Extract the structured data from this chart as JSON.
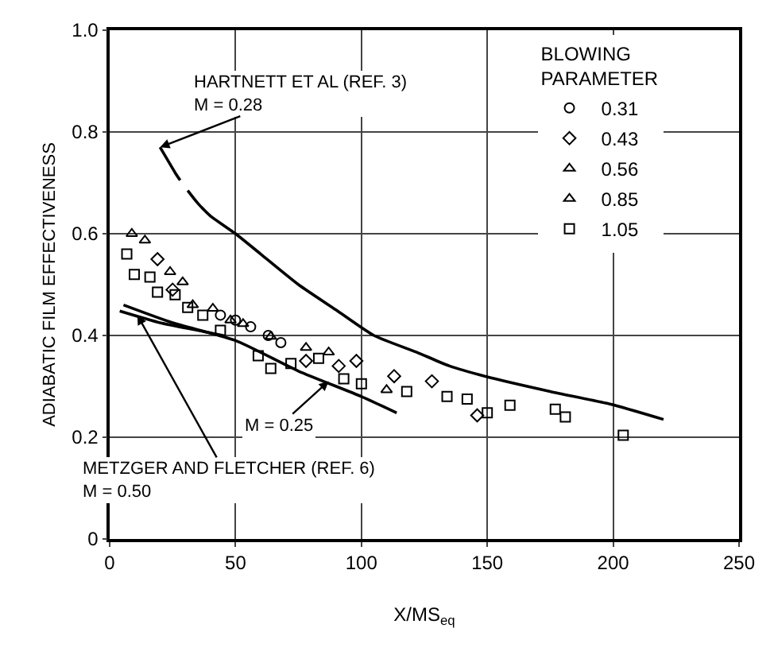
{
  "chart_data": {
    "type": "scatter",
    "xlabel": "X/MS$_{eq}$",
    "ylabel": "ADIABATIC FILM EFFECTIVENESS",
    "legend_title": "BLOWING\nPARAMETER",
    "xlim": [
      0,
      250
    ],
    "xticks": [
      0,
      50,
      100,
      150,
      200,
      250
    ],
    "ylim": [
      0,
      1.0
    ],
    "yticks": [
      0,
      0.2,
      0.4,
      0.6,
      0.8,
      {
        "value": 1.0,
        "label": "1.0"
      }
    ],
    "grid": true,
    "legend": "top right",
    "series": [
      {
        "type": "line",
        "color": "#000000",
        "line_style": "solid",
        "x": [
          20,
          23,
          26,
          28,
          29,
          31,
          35,
          40,
          50,
          60,
          75,
          90,
          105,
          122,
          135,
          149,
          175,
          199,
          220
        ],
        "values": [
          0.77,
          0.745,
          0.72,
          0.705,
          null,
          0.685,
          0.66,
          0.635,
          0.6,
          0.56,
          0.5,
          0.45,
          0.4,
          0.367,
          0.34,
          0.32,
          0.29,
          0.265,
          0.235
        ]
      },
      {
        "type": "line",
        "color": "#000000",
        "line_style": "solid",
        "x": [
          5.5,
          25,
          50,
          75,
          100,
          114
        ],
        "values": [
          0.46,
          0.425,
          0.39,
          0.33,
          0.28,
          0.248
        ]
      },
      {
        "type": "line",
        "color": "#000000",
        "line_style": "solid",
        "x": [
          4,
          20,
          35,
          45
        ],
        "values": [
          0.448,
          0.425,
          0.41,
          0.4
        ]
      },
      {
        "name": "0.31",
        "color": "#000000",
        "marker": "circle",
        "x": [
          44,
          50,
          56,
          63,
          68
        ],
        "values": [
          0.44,
          0.43,
          0.417,
          0.4,
          0.386
        ]
      },
      {
        "name": "0.43",
        "color": "#000000",
        "marker": "diamond",
        "x": [
          19,
          25,
          78,
          91,
          98,
          113,
          128,
          146
        ],
        "values": [
          0.55,
          0.49,
          0.35,
          0.34,
          0.35,
          0.32,
          0.31,
          0.243
        ]
      },
      {
        "name": "0.56",
        "color": "#000000",
        "marker": "triangle",
        "x": [
          8.8,
          14,
          24,
          29,
          78,
          87,
          110
        ],
        "values": [
          0.6,
          0.587,
          0.525,
          0.505,
          0.376,
          0.367,
          0.293
        ]
      },
      {
        "name": "0.85",
        "color": "#000000",
        "marker": "triangle",
        "x": [
          33,
          41,
          48,
          53,
          64
        ],
        "values": [
          0.46,
          0.453,
          0.43,
          0.423,
          0.398
        ]
      },
      {
        "name": "1.05",
        "color": "#000000",
        "marker": "square",
        "x": [
          6.8,
          9.8,
          16,
          19,
          26,
          31,
          37,
          44,
          59,
          64,
          72,
          83,
          93,
          100,
          118,
          134,
          142,
          150,
          159,
          177,
          181,
          204
        ],
        "values": [
          0.56,
          0.52,
          0.515,
          0.485,
          0.48,
          0.455,
          0.44,
          0.41,
          0.36,
          0.335,
          0.345,
          0.355,
          0.315,
          0.305,
          0.29,
          0.28,
          0.275,
          0.248,
          0.263,
          0.255,
          0.24,
          0.204
        ]
      }
    ],
    "annotations": [
      {
        "text": "HARTNETT ET AL (REF. 3)\nM = 0.28",
        "x": 20,
        "y": 0.77
      },
      {
        "text": "M = 0.25",
        "x": 87,
        "y": 0.31
      },
      {
        "text": "METZGER AND FLETCHER (REF. 6)\nM = 0.50",
        "x": 11,
        "y": 0.44
      }
    ]
  }
}
